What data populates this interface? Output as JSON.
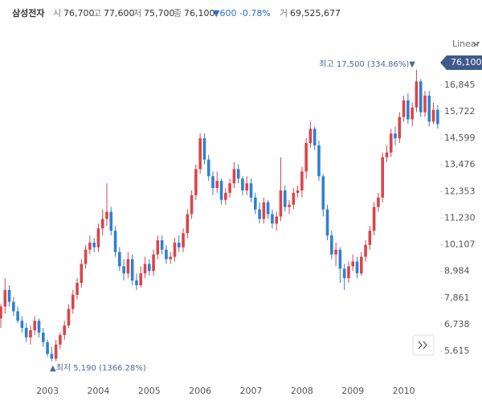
{
  "chart_data": {
    "type": "candlestick",
    "header": {
      "name": "삼성전자",
      "open_label": "시",
      "open": "76,700",
      "high_label": "고",
      "high": "77,600",
      "low_label": "저",
      "low": "75,700",
      "close_label": "종",
      "close": "76,100",
      "change": "▼600 -0.78%",
      "volume_label": "거",
      "volume": "69,525,677"
    },
    "scale_label": "Linear",
    "current_price": "76,100",
    "annotations": [
      {
        "text": "최고 17,500 (334.86%)▼"
      },
      {
        "text": "▲최저 5,190 (1366.28%)"
      }
    ],
    "up_color": "#d9454a",
    "down_color": "#2f80d0",
    "categories": [
      null,
      null,
      null,
      null,
      null,
      null,
      null,
      null,
      null,
      null,
      null,
      "2003",
      null,
      null,
      null,
      null,
      null,
      null,
      null,
      null,
      null,
      null,
      null,
      "2004",
      null,
      null,
      null,
      null,
      null,
      null,
      null,
      null,
      null,
      null,
      null,
      "2005",
      null,
      null,
      null,
      null,
      null,
      null,
      null,
      null,
      null,
      null,
      null,
      "2006",
      null,
      null,
      null,
      null,
      null,
      null,
      null,
      null,
      null,
      null,
      null,
      "2007",
      null,
      null,
      null,
      null,
      null,
      null,
      null,
      null,
      null,
      null,
      null,
      "2008",
      null,
      null,
      null,
      null,
      null,
      null,
      null,
      null,
      null,
      null,
      null,
      "2009",
      null,
      null,
      null,
      null,
      null,
      null,
      null,
      null,
      null,
      null,
      null,
      "2010",
      null,
      null,
      null,
      null,
      null,
      null,
      null,
      null
    ],
    "open": [
      7000,
      7500,
      8200,
      7700,
      7300,
      6900,
      6600,
      6200,
      6500,
      6900,
      6400,
      6000,
      5500,
      5300,
      5900,
      6300,
      6700,
      7400,
      8000,
      8500,
      9300,
      9900,
      10200,
      10000,
      10800,
      11200,
      11500,
      10700,
      9800,
      9200,
      8900,
      9500,
      8600,
      8400,
      8900,
      9300,
      9000,
      9700,
      10300,
      9900,
      9500,
      9600,
      10200,
      10000,
      10600,
      11400,
      12200,
      13300,
      14600,
      13700,
      13000,
      12500,
      12800,
      12000,
      12300,
      12700,
      13300,
      12900,
      12400,
      12700,
      12100,
      11600,
      11200,
      11900,
      11400,
      11000,
      11300,
      12400,
      11700,
      11800,
      12300,
      12400,
      13200,
      14400,
      15000,
      14300,
      13000,
      11600,
      10500,
      9700,
      9900,
      9100,
      8700,
      9200,
      9400,
      8900,
      9600,
      10100,
      10700,
      11700,
      12100,
      13800,
      14000,
      14800,
      14600,
      15500,
      16200,
      15400,
      15900,
      17000,
      15700,
      16400,
      15300,
      15800
    ],
    "high": [
      7600,
      8700,
      8400,
      7900,
      7500,
      7100,
      6800,
      6700,
      7100,
      7000,
      6600,
      6100,
      5800,
      6100,
      6400,
      6900,
      7600,
      8200,
      8700,
      9500,
      10100,
      10500,
      10400,
      11000,
      11600,
      12700,
      11700,
      10900,
      10000,
      9500,
      9800,
      9700,
      8900,
      9200,
      9600,
      9500,
      9900,
      10500,
      10500,
      10100,
      9800,
      10400,
      10500,
      10800,
      11600,
      12400,
      13500,
      14800,
      14800,
      13900,
      13200,
      13200,
      12900,
      12500,
      12900,
      13600,
      13500,
      13000,
      13000,
      12900,
      12300,
      11900,
      12100,
      12000,
      11600,
      11500,
      13800,
      12600,
      12000,
      12500,
      12600,
      13400,
      14600,
      15300,
      15100,
      14500,
      13100,
      11800,
      10700,
      10200,
      10000,
      9300,
      9400,
      9700,
      9600,
      9800,
      10300,
      10900,
      11900,
      12300,
      14000,
      14300,
      15000,
      15100,
      15700,
      16400,
      16500,
      16100,
      17500,
      17100,
      16600,
      16600,
      16100,
      16000
    ],
    "low": [
      6600,
      7200,
      7500,
      7100,
      6800,
      6400,
      6000,
      5900,
      6300,
      6200,
      5800,
      5400,
      5190,
      5200,
      5700,
      6100,
      6600,
      7200,
      7800,
      8300,
      9100,
      9700,
      9800,
      9800,
      10500,
      10900,
      10500,
      9600,
      9000,
      8600,
      8700,
      8400,
      8200,
      8300,
      8700,
      8800,
      8800,
      9500,
      9700,
      9300,
      9300,
      9400,
      9800,
      9800,
      10400,
      11200,
      12000,
      13100,
      13500,
      12800,
      12200,
      12300,
      11800,
      11800,
      12100,
      12500,
      12700,
      12200,
      12200,
      11900,
      11400,
      11000,
      11000,
      11200,
      10800,
      10700,
      11100,
      11500,
      11400,
      11600,
      12100,
      12100,
      12900,
      14200,
      14100,
      12800,
      11300,
      10300,
      9500,
      9200,
      8500,
      8200,
      8500,
      9000,
      8700,
      8800,
      9400,
      9900,
      10500,
      11500,
      11900,
      13600,
      13800,
      14300,
      14400,
      15300,
      15200,
      15100,
      15700,
      15500,
      15500,
      15100,
      15200,
      15000
    ],
    "close": [
      7500,
      8200,
      7700,
      7300,
      6900,
      6600,
      6200,
      6500,
      6900,
      6400,
      6000,
      5500,
      5300,
      5900,
      6300,
      6700,
      7400,
      8000,
      8500,
      9300,
      9900,
      10200,
      10000,
      10800,
      11200,
      11500,
      10700,
      9800,
      9200,
      8900,
      9500,
      8600,
      8400,
      8900,
      9300,
      9000,
      9700,
      10300,
      9900,
      9500,
      9600,
      10200,
      10000,
      10600,
      11400,
      12200,
      13300,
      14600,
      13700,
      13000,
      12500,
      12800,
      12000,
      12300,
      12700,
      13300,
      12900,
      12400,
      12700,
      12100,
      11600,
      11200,
      11900,
      11400,
      11000,
      11300,
      12400,
      11700,
      11800,
      12300,
      12400,
      13200,
      14400,
      15000,
      14300,
      13000,
      11600,
      10500,
      9700,
      9900,
      9100,
      8700,
      9200,
      9400,
      8900,
      9600,
      10100,
      10700,
      11700,
      12100,
      13800,
      14000,
      14800,
      14600,
      15500,
      16200,
      15400,
      15900,
      17000,
      15700,
      16400,
      15300,
      15800,
      15200
    ],
    "ylim": [
      4500,
      18400
    ],
    "yticks": [
      {
        "value": 5615,
        "label": "5,615"
      },
      {
        "value": 6738,
        "label": "6,738"
      },
      {
        "value": 7861,
        "label": "7,861"
      },
      {
        "value": 8984,
        "label": "8,984"
      },
      {
        "value": 10107,
        "label": "10,107"
      },
      {
        "value": 11230,
        "label": "11,230"
      },
      {
        "value": 12353,
        "label": "12,353"
      },
      {
        "value": 13476,
        "label": "13,476"
      },
      {
        "value": 14599,
        "label": "14,599"
      },
      {
        "value": 15722,
        "label": "15,722"
      },
      {
        "value": 16845,
        "label": "16,845"
      }
    ]
  }
}
